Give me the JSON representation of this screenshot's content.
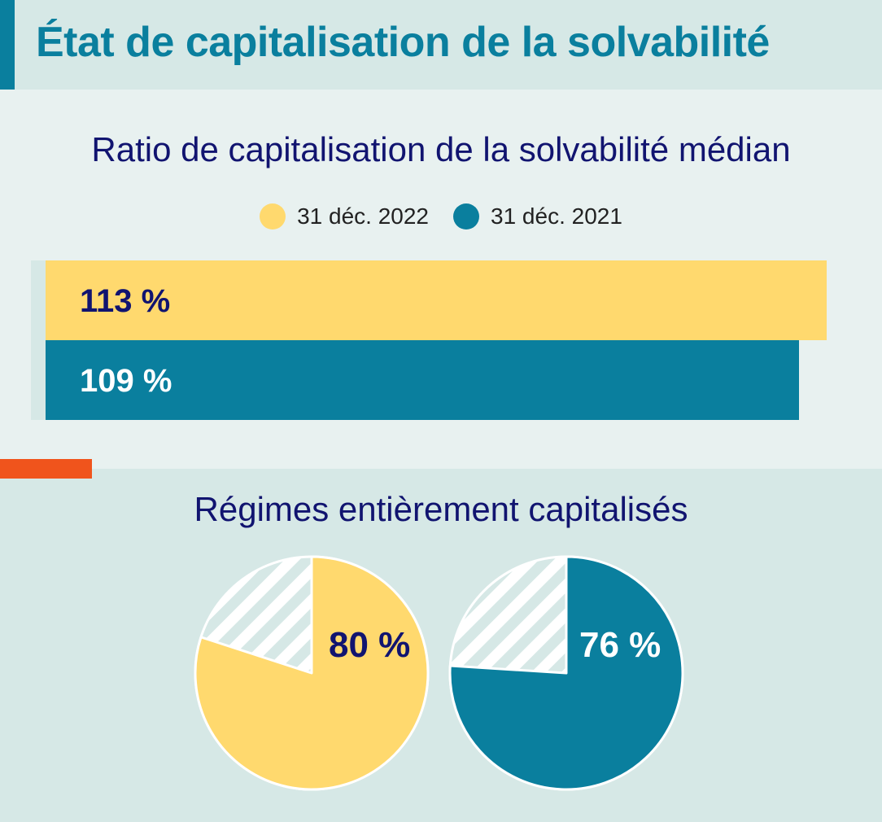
{
  "header": {
    "title": "État de capitalisation de la solvabilité"
  },
  "colors": {
    "y2022": "#ffd96e",
    "y2021": "#0a7f9e",
    "label_dark": "#111470",
    "label_light": "#ffffff",
    "hatch_bg": "#d6e8e6"
  },
  "chart_data": [
    {
      "type": "bar",
      "orientation": "horizontal",
      "title": "Ratio de capitalisation de la solvabilité médian",
      "legend": {
        "placement": "top-center"
      },
      "series": [
        {
          "name": "31 déc. 2022",
          "value": 113,
          "label": "113 %",
          "color": "#ffd96e"
        },
        {
          "name": "31 déc. 2021",
          "value": 109,
          "label": "109 %",
          "color": "#0a7f9e"
        }
      ],
      "xlim": [
        0,
        113
      ]
    },
    {
      "type": "pie",
      "title": "Régimes entièrement capitalisés",
      "pies": [
        {
          "value": 80,
          "label": "80 %",
          "color": "#ffd96e"
        },
        {
          "value": 76,
          "label": "76 %",
          "color": "#0a7f9e"
        }
      ]
    }
  ]
}
